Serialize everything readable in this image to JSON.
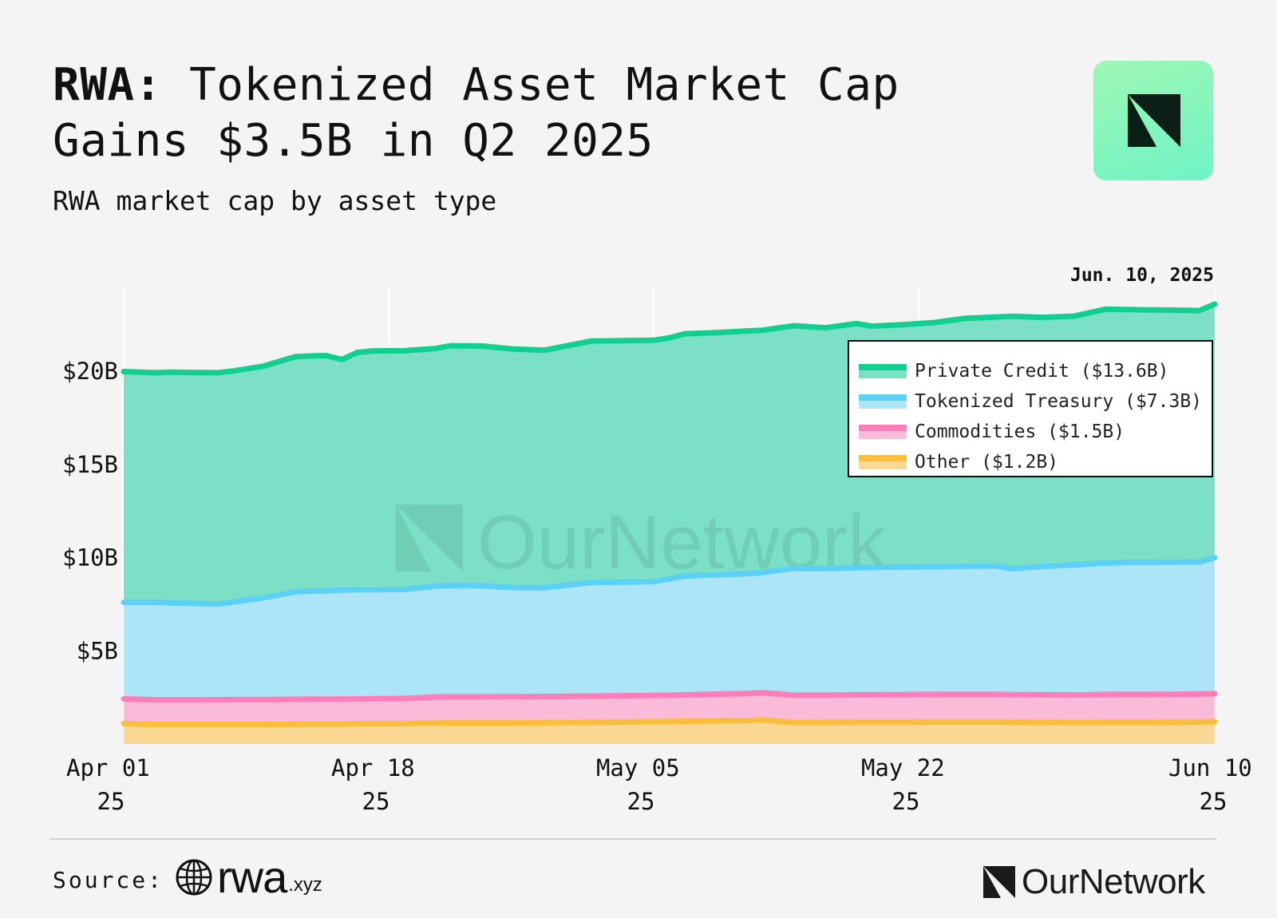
{
  "header": {
    "title_bold": "RWA:",
    "title_line1_rest": " Tokenized Asset Market Cap",
    "title_line2": "Gains $3.5B in Q2 2025",
    "subtitle": "RWA market cap by asset type",
    "date_label": "Jun. 10, 2025"
  },
  "watermark": "OurNetwork",
  "footer": {
    "source_label": "Source:",
    "source_brand": "rwa",
    "source_brand_suffix": ".xyz",
    "brand": "OurNetwork"
  },
  "colors": {
    "private_credit_line": "#10cf90",
    "private_credit_fill": "#7be0c6",
    "treasury_line": "#5dd0f8",
    "treasury_fill": "#ade5f8",
    "commodities_line": "#ff7eb9",
    "commodities_fill": "#f9bbd8",
    "other_line": "#fbbd3c",
    "other_fill": "#fbd794",
    "background": "#f4f4f4",
    "grid": "#ffffff"
  },
  "chart_data": {
    "type": "area",
    "stacked": true,
    "title": "RWA: Tokenized Asset Market Cap Gains $3.5B in Q2 2025",
    "subtitle": "RWA market cap by asset type",
    "annotation": "Jun. 10, 2025",
    "xlabel": "",
    "ylabel": "",
    "ylim": [
      0,
      24.5
    ],
    "y_ticks": [
      5,
      10,
      15,
      20
    ],
    "y_tick_labels": [
      "$5B",
      "$10B",
      "$15B",
      "$20B"
    ],
    "x_ticks": [
      0,
      17,
      34,
      51,
      70
    ],
    "x_tick_labels": [
      [
        "Apr 01",
        "25"
      ],
      [
        "Apr 18",
        "25"
      ],
      [
        "May 05",
        "25"
      ],
      [
        "May 22",
        "25"
      ],
      [
        "Jun 10",
        "25"
      ]
    ],
    "grid": true,
    "legend_position": "top-right",
    "x_days": [
      0,
      2,
      3,
      5,
      6,
      7,
      9,
      11,
      12,
      13,
      14,
      15,
      16,
      18,
      20,
      21,
      23,
      25,
      27,
      30,
      32,
      34,
      35,
      36,
      38,
      40,
      41,
      43,
      45,
      47,
      48,
      50,
      52,
      54,
      56,
      57,
      59,
      61,
      63,
      65,
      66,
      68,
      69,
      70
    ],
    "series": [
      {
        "name": "Other",
        "legend": "Other ($1.2B)",
        "values": [
          1.1,
          1.05,
          1.05,
          1.05,
          1.05,
          1.05,
          1.05,
          1.06,
          1.07,
          1.07,
          1.07,
          1.08,
          1.09,
          1.1,
          1.12,
          1.13,
          1.13,
          1.13,
          1.14,
          1.16,
          1.18,
          1.2,
          1.21,
          1.22,
          1.24,
          1.26,
          1.3,
          1.15,
          1.16,
          1.17,
          1.17,
          1.17,
          1.18,
          1.18,
          1.18,
          1.17,
          1.16,
          1.15,
          1.16,
          1.16,
          1.16,
          1.17,
          1.18,
          1.2
        ]
      },
      {
        "name": "Commodities",
        "legend": "Commodities ($1.5B)",
        "values": [
          1.32,
          1.32,
          1.32,
          1.32,
          1.32,
          1.33,
          1.33,
          1.34,
          1.34,
          1.34,
          1.34,
          1.34,
          1.34,
          1.34,
          1.4,
          1.4,
          1.4,
          1.41,
          1.41,
          1.41,
          1.41,
          1.41,
          1.41,
          1.42,
          1.43,
          1.45,
          1.45,
          1.47,
          1.46,
          1.47,
          1.47,
          1.48,
          1.48,
          1.48,
          1.48,
          1.48,
          1.48,
          1.48,
          1.5,
          1.5,
          1.5,
          1.5,
          1.5,
          1.5
        ]
      },
      {
        "name": "Tokenized Treasury",
        "legend": "Tokenized Treasury ($7.3B)",
        "values": [
          5.18,
          5.23,
          5.2,
          5.16,
          5.14,
          5.23,
          5.47,
          5.76,
          5.79,
          5.81,
          5.85,
          5.85,
          5.85,
          5.85,
          5.95,
          5.97,
          5.96,
          5.85,
          5.83,
          6.1,
          6.1,
          6.1,
          6.24,
          6.37,
          6.4,
          6.43,
          6.45,
          6.8,
          6.79,
          6.82,
          6.83,
          6.85,
          6.85,
          6.88,
          6.89,
          6.75,
          6.89,
          6.98,
          7.05,
          7.09,
          7.09,
          7.09,
          7.08,
          7.3
        ]
      },
      {
        "name": "Private Credit",
        "legend": "Private Credit ($13.6B)",
        "values": [
          12.38,
          12.32,
          12.38,
          12.4,
          12.41,
          12.4,
          12.43,
          12.62,
          12.62,
          12.62,
          12.37,
          12.74,
          12.81,
          12.81,
          12.75,
          12.87,
          12.86,
          12.8,
          12.75,
          12.95,
          12.95,
          12.95,
          12.93,
          13.0,
          13.0,
          13.02,
          13.0,
          13.02,
          12.92,
          13.1,
          12.95,
          13.0,
          13.1,
          13.3,
          13.36,
          13.55,
          13.36,
          13.35,
          13.62,
          13.55,
          13.54,
          13.51,
          13.49,
          13.6
        ]
      }
    ]
  }
}
